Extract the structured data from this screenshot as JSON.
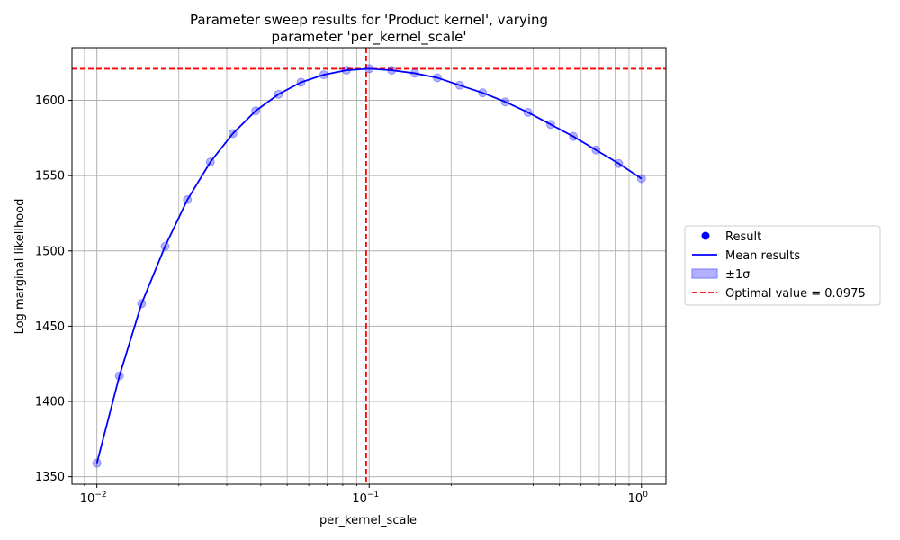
{
  "chart_data": {
    "type": "scatter",
    "title_lines": [
      "Parameter sweep results for 'Product kernel', varying",
      "parameter 'per_kernel_scale'"
    ],
    "xlabel": "per_kernel_scale",
    "ylabel": "Log marginal likelihood",
    "xscale": "log",
    "xlim": [
      0.0081,
      1.23
    ],
    "ylim": [
      1345,
      1635
    ],
    "x_ticks": [
      {
        "value": 0.01,
        "base": "10",
        "exp": "−2"
      },
      {
        "value": 0.1,
        "base": "10",
        "exp": "−1"
      },
      {
        "value": 1,
        "base": "10",
        "exp": "0"
      }
    ],
    "y_ticks": [
      1350,
      1400,
      1450,
      1500,
      1550,
      1600
    ],
    "grid": true,
    "series": [
      {
        "name": "Result",
        "kind": "points",
        "color": "#0000ff",
        "x": [
          0.01,
          0.0121,
          0.0146,
          0.0178,
          0.0215,
          0.0261,
          0.0316,
          0.0383,
          0.0464,
          0.0562,
          0.0681,
          0.0825,
          0.1,
          0.121,
          0.147,
          0.178,
          0.215,
          0.261,
          0.316,
          0.383,
          0.464,
          0.562,
          0.681,
          0.825,
          1.0
        ],
        "y": [
          1359,
          1417,
          1465,
          1503,
          1534,
          1559,
          1578,
          1593,
          1604,
          1612,
          1617,
          1620,
          1621,
          1620,
          1618,
          1615,
          1610,
          1605,
          1599,
          1592,
          1584,
          1576,
          1567,
          1558,
          1548
        ]
      },
      {
        "name": "Mean results",
        "kind": "line",
        "color": "#0000ff",
        "x": [
          0.01,
          0.0121,
          0.0146,
          0.0178,
          0.0215,
          0.0261,
          0.0316,
          0.0383,
          0.0464,
          0.0562,
          0.0681,
          0.0825,
          0.1,
          0.121,
          0.147,
          0.178,
          0.215,
          0.261,
          0.316,
          0.383,
          0.464,
          0.562,
          0.681,
          0.825,
          1.0
        ],
        "y": [
          1359,
          1417,
          1465,
          1503,
          1534,
          1559,
          1578,
          1593,
          1604,
          1612,
          1617,
          1620,
          1621,
          1620,
          1618,
          1615,
          1610,
          1605,
          1599,
          1592,
          1584,
          1576,
          1567,
          1558,
          1548
        ]
      },
      {
        "name": "±1σ",
        "kind": "band",
        "color": "#b0b0ff"
      },
      {
        "name": "Optimal value = 0.0975",
        "kind": "reference",
        "color": "#ff0000",
        "x_value": 0.0975,
        "y_value": 1621
      }
    ],
    "legend_position": "center-right-outside"
  }
}
